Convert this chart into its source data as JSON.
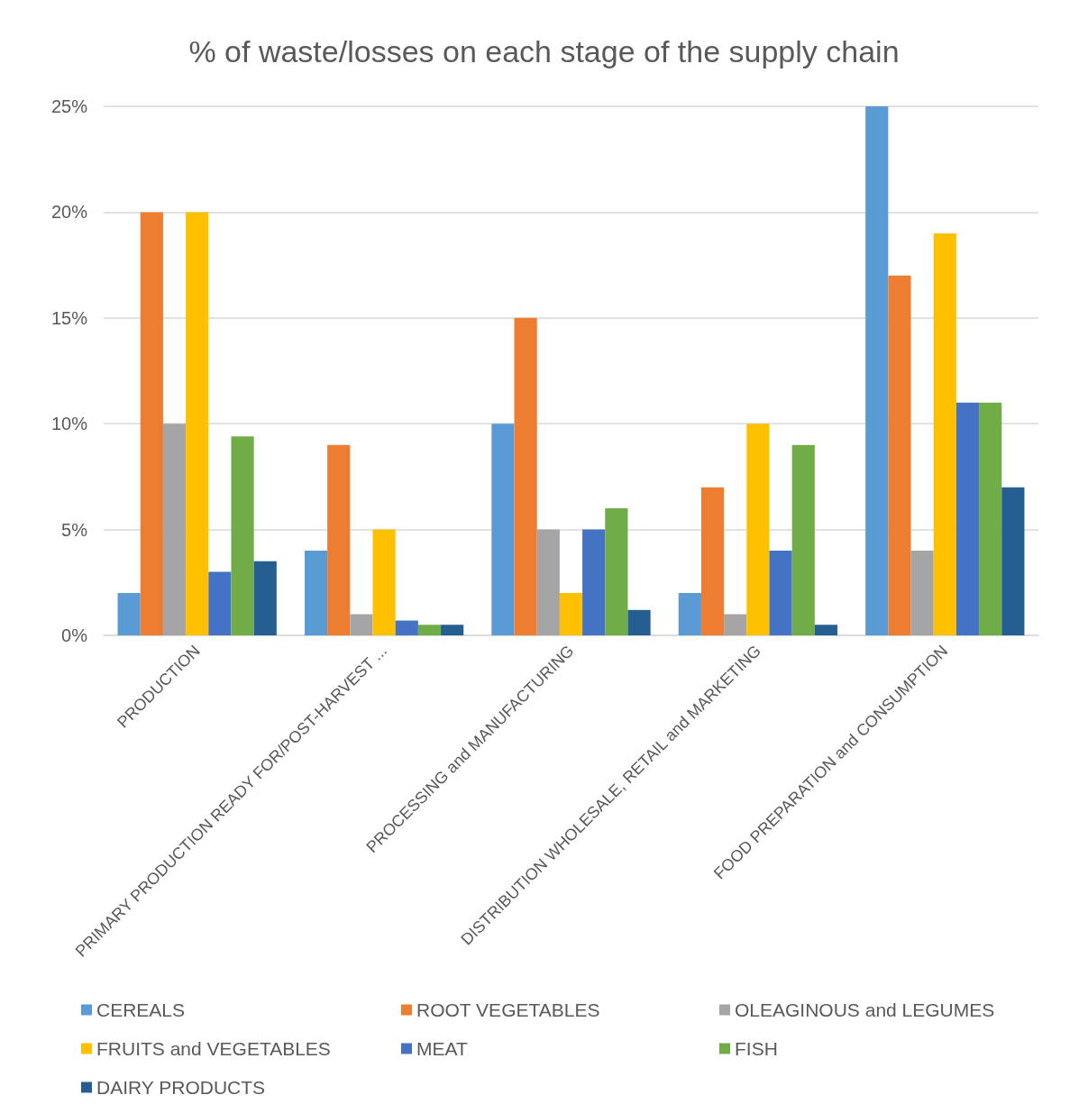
{
  "chart_data": {
    "type": "bar",
    "title": "% of waste/losses on each stage of the supply chain",
    "categories": [
      "PRODUCTION",
      "PRIMARY PRODUCTION READY FOR/POST-HARVEST ...",
      "PROCESSING and MANUFACTURING",
      "DISTRIBUTION WHOLESALE, RETAIL and MARKETING",
      "FOOD PREPARATION and CONSUMPTION"
    ],
    "series": [
      {
        "name": "CEREALS",
        "color": "#5b9bd5",
        "values": [
          2,
          4,
          10,
          2,
          25
        ]
      },
      {
        "name": "ROOT VEGETABLES",
        "color": "#ed7d31",
        "values": [
          20,
          9,
          15,
          7,
          17
        ]
      },
      {
        "name": "OLEAGINOUS and LEGUMES",
        "color": "#a5a5a5",
        "values": [
          10,
          1,
          5,
          1,
          4
        ]
      },
      {
        "name": "FRUITS and VEGETABLES",
        "color": "#ffc000",
        "values": [
          20,
          5,
          2,
          10,
          19
        ]
      },
      {
        "name": "MEAT",
        "color": "#4472c4",
        "values": [
          3,
          0.7,
          5,
          4,
          11
        ]
      },
      {
        "name": "FISH",
        "color": "#70ad47",
        "values": [
          9.4,
          0.5,
          6,
          9,
          11
        ]
      },
      {
        "name": "DAIRY PRODUCTS",
        "color": "#255e91",
        "values": [
          3.5,
          0.5,
          1.2,
          0.5,
          7
        ]
      }
    ],
    "ylim": [
      0,
      25
    ],
    "yticks": [
      {
        "value": 0,
        "label": "0%"
      },
      {
        "value": 5,
        "label": "5%"
      },
      {
        "value": 10,
        "label": "10%"
      },
      {
        "value": 15,
        "label": "15%"
      },
      {
        "value": 20,
        "label": "20%"
      },
      {
        "value": 25,
        "label": "25%"
      }
    ],
    "grid": "y",
    "legend": "bottom"
  }
}
